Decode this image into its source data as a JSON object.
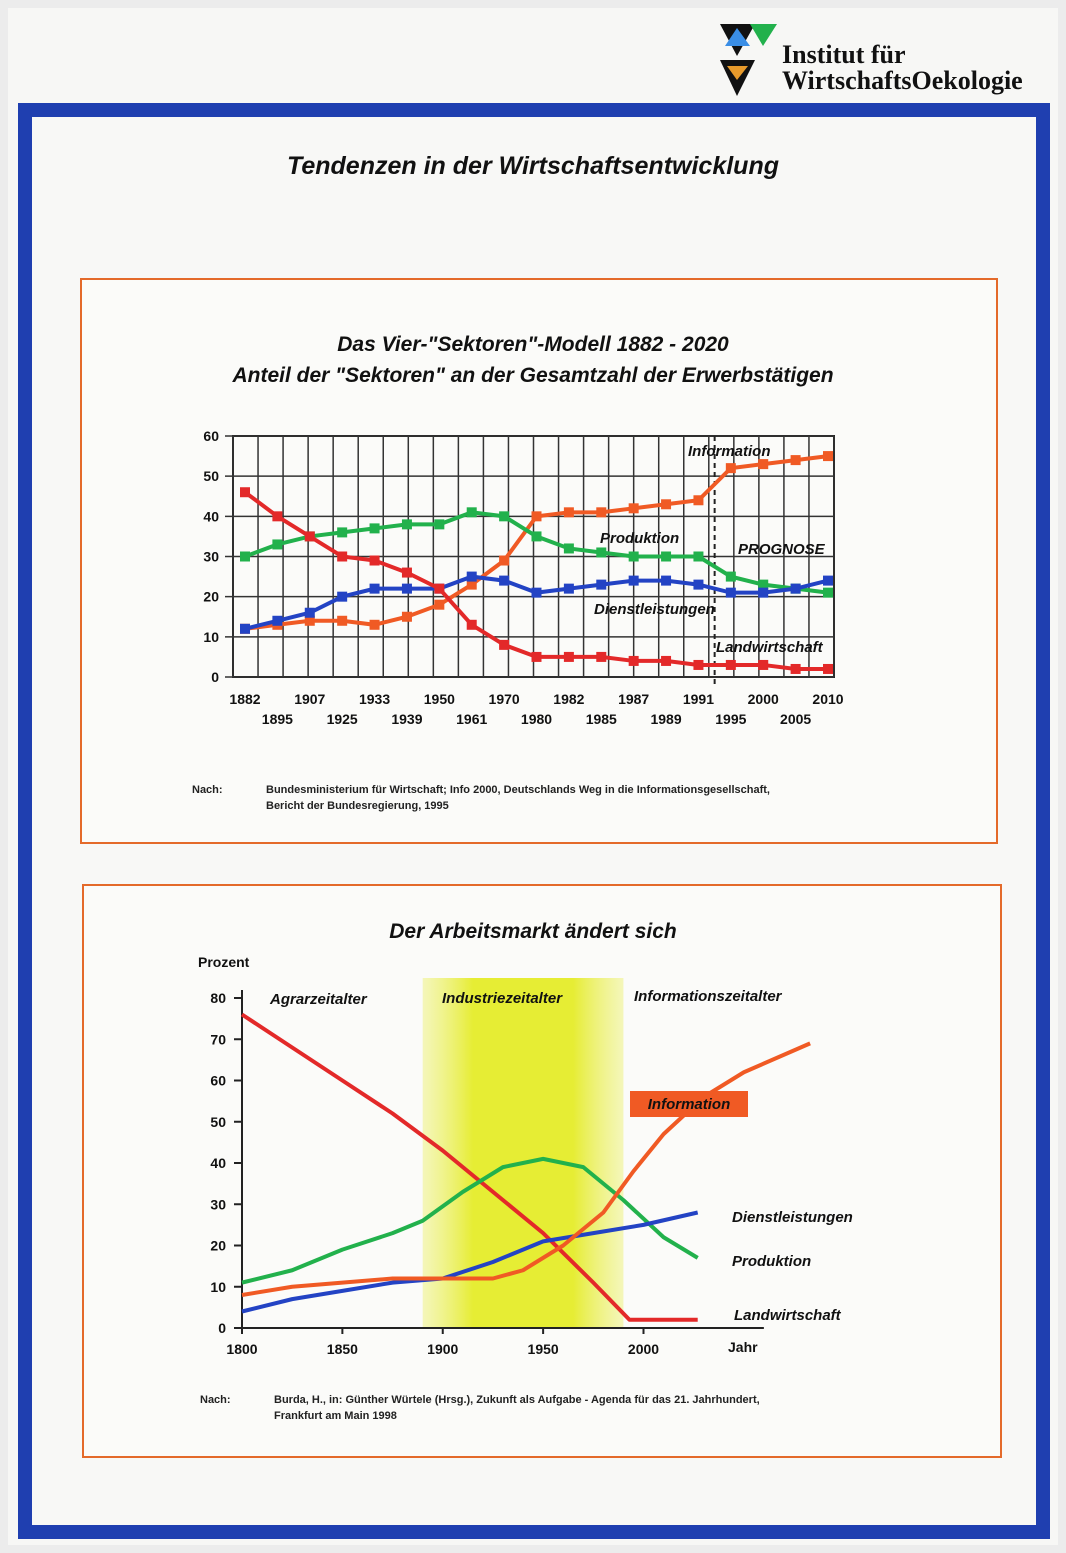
{
  "logo": {
    "line1": "Institut für",
    "line2": "WirtschaftsOekologie"
  },
  "page_title": "Tendenzen in der Wirtschaftsentwicklung",
  "colors": {
    "frame": "#1f3fb0",
    "box_border": "#e46a2a",
    "landwirtschaft": "#e32929",
    "produktion": "#22b14c",
    "dienstleistungen": "#2343c4",
    "information": "#f05a24"
  },
  "chart_data": [
    {
      "type": "line",
      "title": "Das Vier-\"Sektoren\"-Modell  1882 - 2020",
      "subtitle": "Anteil der \"Sektoren\" an der Gesamtzahl der Erwerbstätigen",
      "x": [
        "1882",
        "1895",
        "1907",
        "1925",
        "1933",
        "1939",
        "1950",
        "1961",
        "1970",
        "1980",
        "1982",
        "1985",
        "1987",
        "1989",
        "1991",
        "1995",
        "2000",
        "2005",
        "2010"
      ],
      "xticks_top": [
        "1882",
        "1907",
        "1933",
        "1950",
        "1970",
        "1982",
        "1987",
        "1991",
        "2000",
        "2010"
      ],
      "xticks_bottom": [
        "1895",
        "1925",
        "1939",
        "1961",
        "1980",
        "1985",
        "1989",
        "1995",
        "2005"
      ],
      "yticks": [
        "0",
        "10",
        "20",
        "30",
        "40",
        "50",
        "60"
      ],
      "ylim": [
        0,
        60
      ],
      "grid": true,
      "prognose_label": "PROGNOSE",
      "series": [
        {
          "name": "Information",
          "color": "#f05a24",
          "values": [
            12,
            13,
            14,
            14,
            13,
            15,
            18,
            23,
            29,
            40,
            41,
            41,
            42,
            43,
            44,
            52,
            53,
            54,
            55
          ]
        },
        {
          "name": "Produktion",
          "color": "#22b14c",
          "values": [
            30,
            33,
            35,
            36,
            37,
            38,
            38,
            41,
            40,
            35,
            32,
            31,
            30,
            30,
            30,
            25,
            23,
            22,
            21
          ]
        },
        {
          "name": "Dienstleistungen",
          "color": "#2343c4",
          "values": [
            12,
            14,
            16,
            20,
            22,
            22,
            22,
            25,
            24,
            21,
            22,
            23,
            24,
            24,
            23,
            21,
            21,
            22,
            24
          ]
        },
        {
          "name": "Landwirtschaft",
          "color": "#e32929",
          "values": [
            46,
            40,
            35,
            30,
            29,
            26,
            22,
            13,
            8,
            5,
            5,
            5,
            4,
            4,
            3,
            3,
            3,
            2,
            2
          ]
        }
      ],
      "source_label": "Nach:",
      "source_text": "Bundesministerium für Wirtschaft; Info 2000, Deutschlands Weg in die Informationsgesellschaft,",
      "source_text2": "Bericht der Bundesregierung, 1995"
    },
    {
      "type": "line",
      "title": "Der Arbeitsmarkt ändert sich",
      "ylabel": "Prozent",
      "xlabel": "Jahr",
      "xticks": [
        "1800",
        "1850",
        "1900",
        "1950",
        "2000"
      ],
      "yticks": [
        "0",
        "10",
        "20",
        "30",
        "40",
        "50",
        "60",
        "70",
        "80"
      ],
      "xlim": [
        1800,
        2050
      ],
      "ylim": [
        0,
        80
      ],
      "eras": [
        "Agrarzeitalter",
        "Industriezeitalter",
        "Informationszeitalter"
      ],
      "highlight_range": [
        1890,
        1990
      ],
      "series": [
        {
          "name": "Landwirtschaft",
          "color": "#e32929",
          "x": [
            1800,
            1825,
            1850,
            1875,
            1900,
            1925,
            1950,
            1975,
            1993,
            2010,
            2027
          ],
          "values": [
            76,
            68,
            60,
            52,
            43,
            33,
            23,
            11,
            2,
            2,
            2
          ]
        },
        {
          "name": "Produktion",
          "color": "#22b14c",
          "x": [
            1800,
            1825,
            1850,
            1875,
            1890,
            1910,
            1930,
            1950,
            1970,
            1990,
            2010,
            2027
          ],
          "values": [
            11,
            14,
            19,
            23,
            26,
            33,
            39,
            41,
            39,
            31,
            22,
            17
          ]
        },
        {
          "name": "Dienstleistungen",
          "color": "#2343c4",
          "x": [
            1800,
            1825,
            1850,
            1875,
            1900,
            1925,
            1950,
            1975,
            2000,
            2027
          ],
          "values": [
            4,
            7,
            9,
            11,
            12,
            16,
            21,
            23,
            25,
            28
          ]
        },
        {
          "name": "Information",
          "color": "#f05a24",
          "x": [
            1800,
            1825,
            1850,
            1875,
            1900,
            1925,
            1940,
            1960,
            1980,
            1995,
            2010,
            2030,
            2050,
            2083
          ],
          "values": [
            8,
            10,
            11,
            12,
            12,
            12,
            14,
            20,
            28,
            38,
            47,
            56,
            62,
            69
          ]
        }
      ],
      "source_label": "Nach:",
      "source_text": "Burda, H., in: Günther Würtele (Hrsg.), Zukunft als Aufgabe - Agenda für das 21. Jahrhundert,",
      "source_text2": "Frankfurt am Main 1998"
    }
  ]
}
